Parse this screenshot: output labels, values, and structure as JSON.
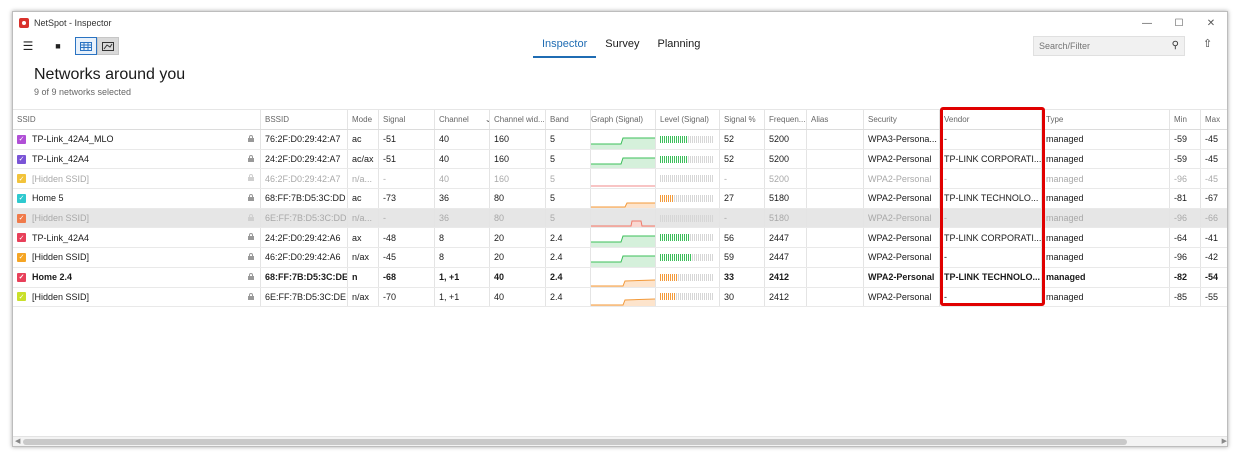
{
  "window": {
    "title": "NetSpot - Inspector"
  },
  "toolbar": {
    "menu_icon": "hamburger-icon",
    "stop_icon": "stop-icon",
    "tabs": [
      {
        "label": "Inspector",
        "active": true
      },
      {
        "label": "Survey",
        "active": false
      },
      {
        "label": "Planning",
        "active": false
      }
    ],
    "search_placeholder": "Search/Filter"
  },
  "header": {
    "title": "Networks around you",
    "subtitle": "9 of 9 networks selected"
  },
  "columns": [
    "SSID",
    "BSSID",
    "Mode",
    "Signal",
    "Channel",
    "Channel wid...",
    "Band",
    "Graph (Signal)",
    "Level (Signal)",
    "Signal %",
    "Frequen...",
    "Alias",
    "Security",
    "Vendor",
    "Type",
    "Min",
    "Max"
  ],
  "rows": [
    {
      "color": "#b04fd6",
      "ssid": "TP-Link_42A4_MLO",
      "bssid": "76:2F:D0:29:42:A7",
      "mode": "ac",
      "signal": "-51",
      "channel": "40",
      "width": "160",
      "band": "5",
      "graph": "green-up",
      "level_pct": 52,
      "level_color": "#3bbf5a",
      "signal_pct": "52",
      "freq": "5200",
      "alias": "",
      "security": "WPA3-Persona...",
      "vendor": "-",
      "type": "managed",
      "min": "-59",
      "max": "-45",
      "state": "normal"
    },
    {
      "color": "#7a54d6",
      "ssid": "TP-Link_42A4",
      "bssid": "24:2F:D0:29:42:A7",
      "mode": "ac/ax",
      "signal": "-51",
      "channel": "40",
      "width": "160",
      "band": "5",
      "graph": "green-up",
      "level_pct": 52,
      "level_color": "#3bbf5a",
      "signal_pct": "52",
      "freq": "5200",
      "alias": "",
      "security": "WPA2-Personal",
      "vendor": "TP-LINK CORPORATI...",
      "type": "managed",
      "min": "-59",
      "max": "-45",
      "state": "normal"
    },
    {
      "color": "#f2c33b",
      "ssid": "[Hidden SSID]",
      "bssid": "46:2F:D0:29:42:A7",
      "mode": "n/a...",
      "signal": "-",
      "channel": "40",
      "width": "160",
      "band": "5",
      "graph": "red-flat",
      "level_pct": 0,
      "level_color": "#cccccc",
      "signal_pct": "-",
      "freq": "5200",
      "alias": "",
      "security": "WPA2-Personal",
      "vendor": "-",
      "type": "managed",
      "min": "-96",
      "max": "-45",
      "state": "dim"
    },
    {
      "color": "#2ec9cf",
      "ssid": "Home 5",
      "bssid": "68:FF:7B:D5:3C:DD",
      "mode": "ac",
      "signal": "-73",
      "channel": "36",
      "width": "80",
      "band": "5",
      "graph": "orange-step",
      "level_pct": 27,
      "level_color": "#f39a3a",
      "signal_pct": "27",
      "freq": "5180",
      "alias": "",
      "security": "WPA2-Personal",
      "vendor": "TP-LINK TECHNOLO...",
      "type": "managed",
      "min": "-81",
      "max": "-67",
      "state": "normal"
    },
    {
      "color": "#f07a4a",
      "ssid": "[Hidden SSID]",
      "bssid": "6E:FF:7B:D5:3C:DD",
      "mode": "n/a...",
      "signal": "-",
      "channel": "36",
      "width": "80",
      "band": "5",
      "graph": "red-bump",
      "level_pct": 0,
      "level_color": "#cccccc",
      "signal_pct": "-",
      "freq": "5180",
      "alias": "",
      "security": "WPA2-Personal",
      "vendor": "-",
      "type": "managed",
      "min": "-96",
      "max": "-66",
      "state": "dim-selected"
    },
    {
      "color": "#e8405a",
      "ssid": "TP-Link_42A4",
      "bssid": "24:2F:D0:29:42:A6",
      "mode": "ax",
      "signal": "-48",
      "channel": "8",
      "width": "20",
      "band": "2.4",
      "graph": "green-up",
      "level_pct": 56,
      "level_color": "#3bbf5a",
      "signal_pct": "56",
      "freq": "2447",
      "alias": "",
      "security": "WPA2-Personal",
      "vendor": "TP-LINK CORPORATI...",
      "type": "managed",
      "min": "-64",
      "max": "-41",
      "state": "normal"
    },
    {
      "color": "#f5a524",
      "ssid": "[Hidden SSID]",
      "bssid": "46:2F:D0:29:42:A6",
      "mode": "n/ax",
      "signal": "-45",
      "channel": "8",
      "width": "20",
      "band": "2.4",
      "graph": "green-up",
      "level_pct": 59,
      "level_color": "#3bbf5a",
      "signal_pct": "59",
      "freq": "2447",
      "alias": "",
      "security": "WPA2-Personal",
      "vendor": "-",
      "type": "managed",
      "min": "-96",
      "max": "-42",
      "state": "normal"
    },
    {
      "color": "#e8405a",
      "ssid": "Home 2.4",
      "bssid": "68:FF:7B:D5:3C:DE",
      "mode": "n",
      "signal": "-68",
      "channel": "1, +1",
      "width": "40",
      "band": "2.4",
      "graph": "orange-up",
      "level_pct": 33,
      "level_color": "#f39a3a",
      "signal_pct": "33",
      "freq": "2412",
      "alias": "",
      "security": "WPA2-Personal",
      "vendor": "TP-LINK TECHNOLO...",
      "type": "managed",
      "min": "-82",
      "max": "-54",
      "state": "bold"
    },
    {
      "color": "#c9e02a",
      "ssid": "[Hidden SSID]",
      "bssid": "6E:FF:7B:D5:3C:DE",
      "mode": "n/ax",
      "signal": "-70",
      "channel": "1, +1",
      "width": "40",
      "band": "2.4",
      "graph": "orange-up",
      "level_pct": 30,
      "level_color": "#f39a3a",
      "signal_pct": "30",
      "freq": "2412",
      "alias": "",
      "security": "WPA2-Personal",
      "vendor": "-",
      "type": "managed",
      "min": "-85",
      "max": "-55",
      "state": "normal"
    }
  ],
  "annotation": {
    "highlighted_column": "Vendor",
    "color": "#e00000"
  }
}
